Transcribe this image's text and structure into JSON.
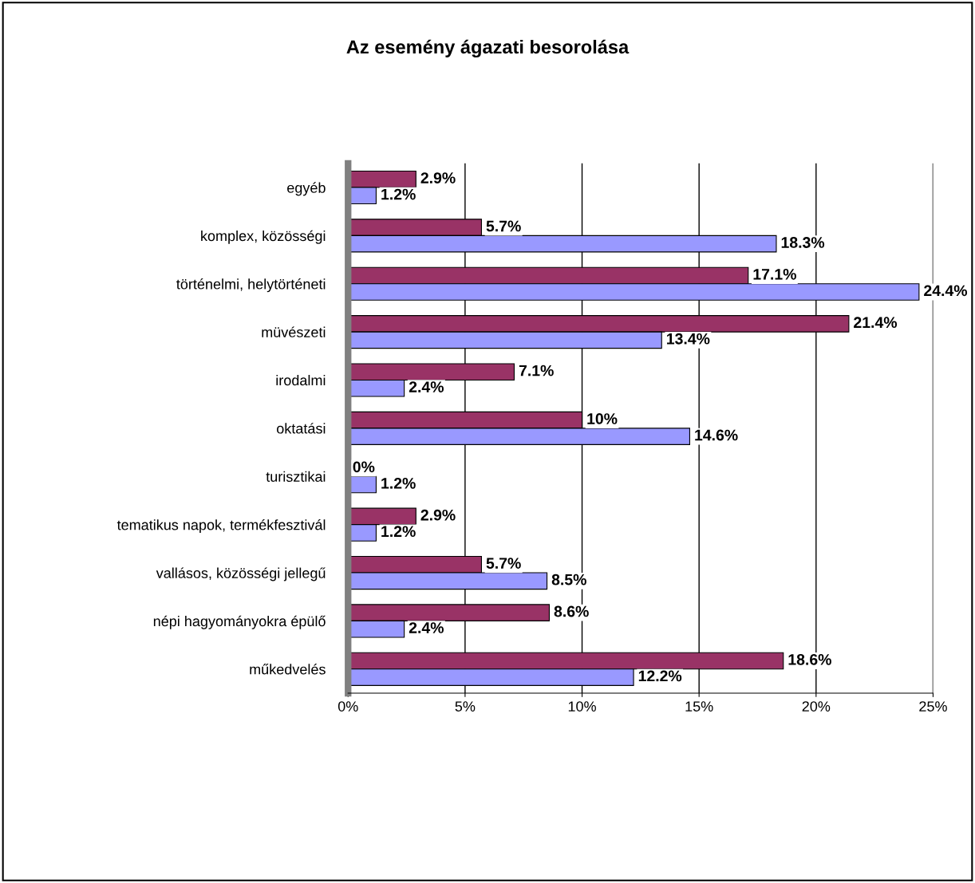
{
  "chart_data": {
    "type": "bar",
    "orientation": "horizontal",
    "title": "Az esemény ágazati besorolása",
    "categories": [
      "egyéb",
      "komplex, közösségi",
      "történelmi, helytörténeti",
      "müvészeti",
      "irodalmi",
      "oktatási",
      "turisztikai",
      "tematikus napok, termékfesztivál",
      "vallásos, közösségi jellegű",
      "népi hagyományokra épülő",
      "műkedvelés"
    ],
    "series": [
      {
        "color": "#993366",
        "values": [
          2.9,
          5.7,
          17.1,
          21.4,
          7.1,
          10,
          0,
          2.9,
          5.7,
          8.6,
          18.6
        ],
        "value_labels": [
          "2.9%",
          "5.7%",
          "17.1%",
          "21.4%",
          "7.1%",
          "10%",
          "0%",
          "2.9%",
          "5.7%",
          "8.6%",
          "18.6%"
        ]
      },
      {
        "color": "#9999ff",
        "values": [
          1.2,
          18.3,
          24.4,
          13.4,
          2.4,
          14.6,
          1.2,
          1.2,
          8.5,
          2.4,
          12.2
        ],
        "value_labels": [
          "1.2%",
          "18.3%",
          "24.4%",
          "13.4%",
          "2.4%",
          "14.6%",
          "1.2%",
          "1.2%",
          "8.5%",
          "2.4%",
          "12.2%"
        ]
      }
    ],
    "xlim": [
      0,
      25
    ],
    "xticks": [
      {
        "value": 0,
        "label": "0%"
      },
      {
        "value": 5,
        "label": "5%"
      },
      {
        "value": 10,
        "label": "10%"
      },
      {
        "value": 15,
        "label": "15%"
      },
      {
        "value": 20,
        "label": "20%"
      },
      {
        "value": 25,
        "label": "25%"
      }
    ],
    "grid": "x"
  }
}
